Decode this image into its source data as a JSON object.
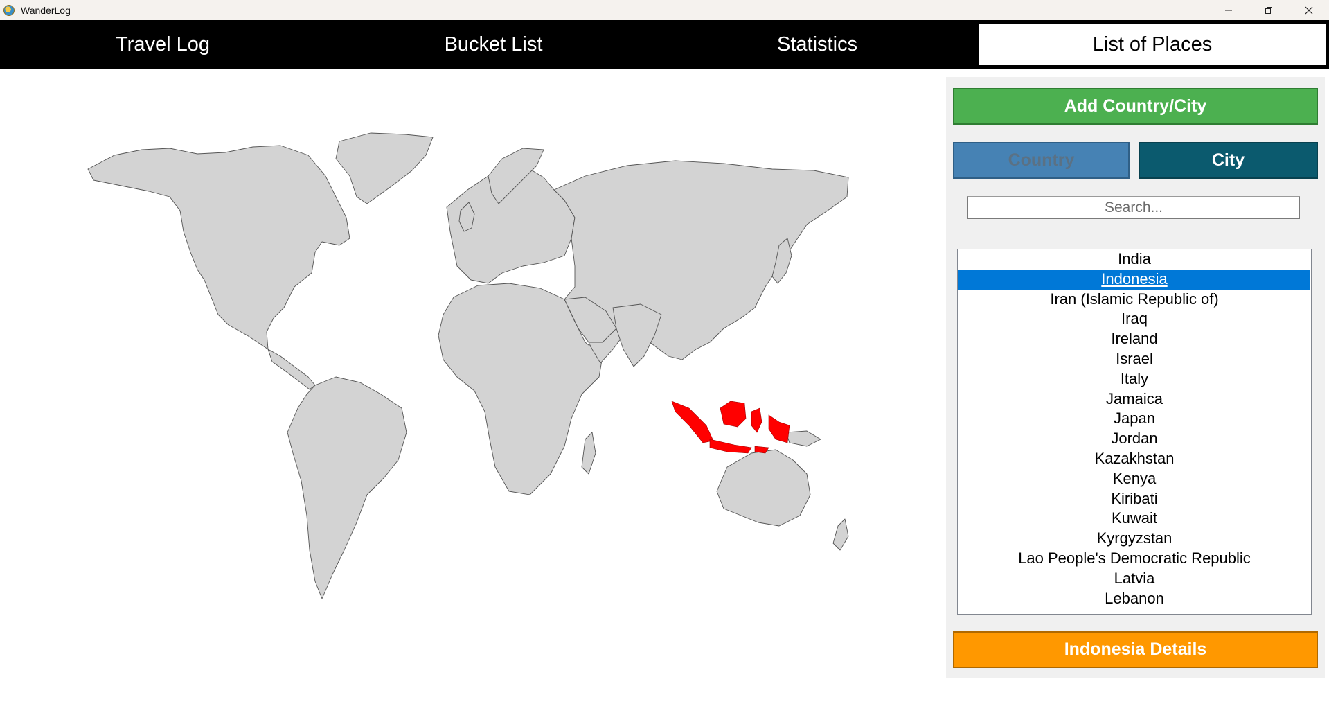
{
  "window": {
    "title": "WanderLog",
    "icon": "wanderlog-globe-icon",
    "controls": [
      "minimize-icon",
      "restore-icon",
      "close-icon"
    ]
  },
  "tabs": [
    {
      "label": "Travel Log",
      "active": false
    },
    {
      "label": "Bucket List",
      "active": false
    },
    {
      "label": "Statistics",
      "active": false
    },
    {
      "label": "List of Places",
      "active": true
    }
  ],
  "map": {
    "highlighted_country": "Indonesia",
    "land_color": "#d3d3d3",
    "border_color": "#555555",
    "highlight_color": "#ff0000"
  },
  "panel": {
    "add_button": "Add Country/City",
    "country_toggle": "Country",
    "city_toggle": "City",
    "search_placeholder": "Search...",
    "places": [
      "India",
      "Indonesia",
      "Iran (Islamic Republic of)",
      "Iraq",
      "Ireland",
      "Israel",
      "Italy",
      "Jamaica",
      "Japan",
      "Jordan",
      "Kazakhstan",
      "Kenya",
      "Kiribati",
      "Kuwait",
      "Kyrgyzstan",
      "Lao People's Democratic Republic",
      "Latvia",
      "Lebanon"
    ],
    "selected_place": "Indonesia",
    "details_button": "Indonesia Details"
  },
  "colors": {
    "add_button": "#4cb050",
    "country_button": "#4682b4",
    "city_button": "#0b5a6e",
    "details_button": "#ff9800",
    "selection": "#0078d7"
  }
}
